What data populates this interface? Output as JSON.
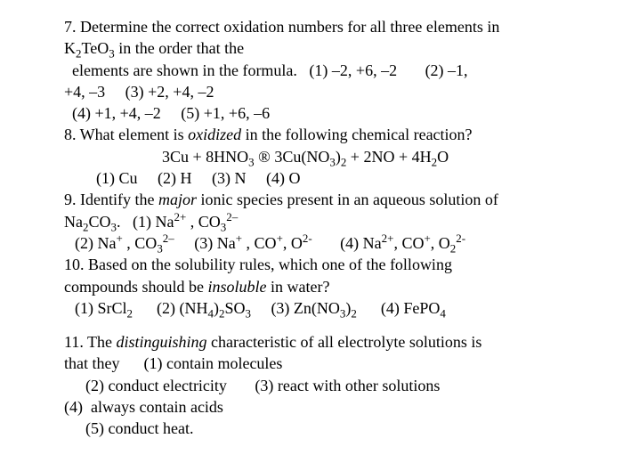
{
  "q7": {
    "line1": "7. Determine the correct oxidation numbers for all three elements in",
    "formula_prefix": "K",
    "formula_sub1": "2",
    "formula_mid": "TeO",
    "formula_sub2": "3",
    "line2_suffix": " in the order that the",
    "line3_prefix": "  elements are shown in the formula.   (1) –2, +6, –2       (2) –1,",
    "line4": "+4, –3     (3) +2, +4, –2",
    "line5": "  (4) +1, +4, –2     (5) +1, +6, –6"
  },
  "q8": {
    "line1_a": "8. What element is ",
    "line1_italic": "oxidized",
    "line1_b": " in the following chemical reaction?",
    "eq_a": "3Cu + 8HNO",
    "eq_sub1": "3",
    "eq_b": " ® 3Cu(NO",
    "eq_sub2": "3",
    "eq_c": ")",
    "eq_sub3": "2",
    "eq_d": " + 2NO + 4H",
    "eq_sub4": "2",
    "eq_e": "O",
    "line3": "(1) Cu     (2) H     (3) N     (4) O"
  },
  "q9": {
    "line1_a": "9. Identify the ",
    "line1_italic": "major",
    "line1_b": " ionic species present in an aqueous solution of",
    "l2_a": "Na",
    "l2_s1": "2",
    "l2_b": "CO",
    "l2_s2": "3",
    "l2_c": ".   (1) Na",
    "l2_sup1": "2+",
    "l2_d": " , CO",
    "l2_s3": "3",
    "l2_sup2": "2–",
    "l3_a": "(2) Na",
    "l3_sup1": "+",
    "l3_b": " , CO",
    "l3_s1": "3",
    "l3_sup2": "2–",
    "l3_c": "     (3) Na",
    "l3_sup3": "+",
    "l3_d": " , CO",
    "l3_sup4": "+",
    "l3_e": ", O",
    "l3_sup5": "2-",
    "l3_f": "       (4) Na",
    "l3_sup6": "2+",
    "l3_g": ", CO",
    "l3_sup7": "+",
    "l3_h": ", O",
    "l3_s2": "2",
    "l3_sup8": "2-"
  },
  "q10": {
    "line1": "10. Based on the solubility rules, which one of the following",
    "line2_a": "compounds should be ",
    "line2_italic": "insoluble",
    "line2_b": " in water?",
    "l3_a": "(1) SrCl",
    "l3_s1": "2",
    "l3_b": "      (2) (NH",
    "l3_s2": "4",
    "l3_c": ")",
    "l3_s3": "2",
    "l3_d": "SO",
    "l3_s4": "3",
    "l3_e": "     (3) Zn(NO",
    "l3_s5": "3",
    "l3_f": ")",
    "l3_s6": "2",
    "l3_g": "      (4) FePO",
    "l3_s7": "4"
  },
  "q11": {
    "line1_a": "11. The ",
    "line1_italic": "distinguishing",
    "line1_b": " characteristic of all electrolyte solutions is",
    "line2": "that they      (1) contain molecules",
    "line3": "(2) conduct electricity       (3) react with other solutions",
    "line4": "(4)  always contain acids",
    "line5": "(5) conduct heat."
  }
}
